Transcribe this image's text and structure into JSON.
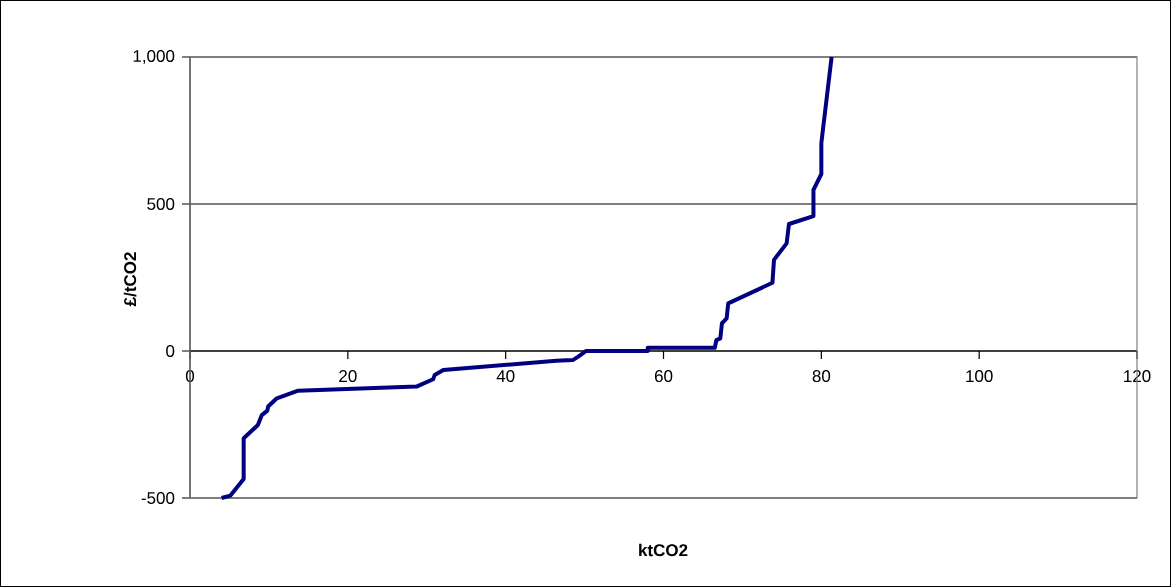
{
  "chart_data": {
    "type": "line",
    "xlabel": "ktCO2",
    "ylabel": "£/tCO2",
    "xlim": [
      0,
      120
    ],
    "xticks": [
      0,
      20,
      40,
      60,
      80,
      100,
      120
    ],
    "ylim": [
      -500,
      1000
    ],
    "yticks": [
      {
        "value": -500,
        "label": "-500"
      },
      0,
      500,
      {
        "value": 1000,
        "label": "1,000"
      }
    ],
    "grid": "y",
    "marker": "none",
    "line_style": "solid",
    "series": [
      {
        "color": "#000080",
        "x": [
          4.0,
          5.1,
          6.8,
          6.8,
          8.6,
          9.1,
          9.8,
          9.9,
          11.0,
          13.7,
          28.7,
          30.8,
          31.0,
          32.1,
          46.4,
          48.5,
          49.2,
          50.2,
          58.0,
          58.0,
          66.5,
          66.7,
          67.2,
          67.4,
          68.0,
          68.2,
          73.8,
          74.0,
          75.6,
          75.9,
          79.0,
          79.0,
          80.0,
          80.0,
          81.3
        ],
        "values": [
          -500,
          -492,
          -435,
          -297,
          -252,
          -218,
          -203,
          -189,
          -161,
          -135,
          -121,
          -96,
          -82,
          -65,
          -33,
          -31,
          -19,
          0,
          0,
          11,
          11,
          37,
          43,
          94,
          111,
          162,
          232,
          310,
          366,
          432,
          459,
          548,
          602,
          707,
          1000
        ]
      }
    ]
  }
}
